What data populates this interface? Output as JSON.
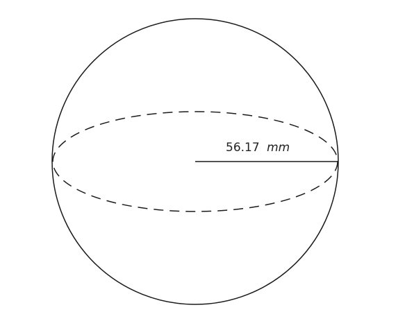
{
  "figure": {
    "radius_value": "56.17",
    "radius_unit": "mm"
  },
  "colors": {
    "stroke": "#1a1a1a",
    "background": "#ffffff"
  }
}
